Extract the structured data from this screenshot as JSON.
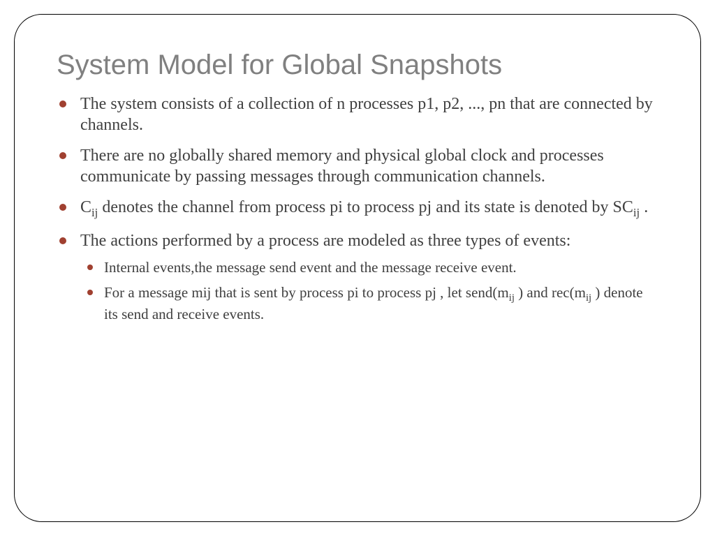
{
  "title": "System Model for Global Snapshots",
  "bullets": {
    "b1": "The system consists of a collection of n processes p1, p2, ..., pn that are connected by channels.",
    "b2": "There are no globally shared memory and physical global clock and processes communicate by passing messages through communication channels.",
    "b3_a": "C",
    "b3_ij1": "ij",
    "b3_b": " denotes the channel from process pi to process pj and its state is denoted by SC",
    "b3_ij2": "ij",
    "b3_c": " .",
    "b4": "The actions performed by a process are modeled as three types of events:",
    "s1": "Internal events,the message send event and the message receive event.",
    "s2_a": "For a message mij that is sent by process pi to process pj , let send(m",
    "s2_ij1": "ij",
    "s2_b": " ) and rec(m",
    "s2_ij2": "ij",
    "s2_c": " ) denote its send and receive events."
  },
  "style": {
    "title_color": "#808080",
    "title_fontsize": 40,
    "body_color": "#404040",
    "body_fontsize": 24,
    "sub_fontsize": 21,
    "bullet_color": "#a04030",
    "border_color": "#000000",
    "border_radius": 40,
    "background": "#ffffff",
    "font_title": "Arial",
    "font_body": "Georgia"
  }
}
